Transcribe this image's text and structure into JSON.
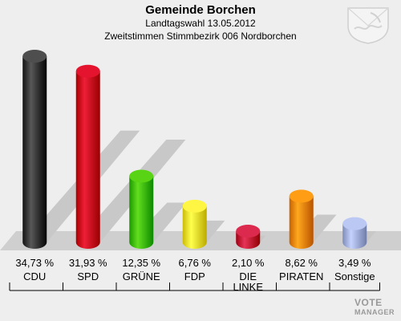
{
  "header": {
    "title": "Gemeinde Borchen",
    "subtitle": "Landtagswahl 13.05.2012",
    "subtitle2": "Zweitstimmen Stimmbezirk 006 Nordborchen"
  },
  "watermark": {
    "line1": "VOTE",
    "line2": "MANAGER"
  },
  "chart_data": {
    "type": "bar",
    "title": "Gemeinde Borchen",
    "categories": [
      "CDU",
      "SPD",
      "GRÜNE",
      "FDP",
      "DIE LINKE",
      "PIRATEN",
      "Sonstige"
    ],
    "values": [
      34.73,
      31.93,
      12.35,
      6.76,
      2.1,
      8.62,
      3.49
    ],
    "value_labels": [
      "34,73 %",
      "31,93 %",
      "12,35 %",
      "6,76 %",
      "2,10 %",
      "8,62 %",
      "3,49 %"
    ],
    "colors": [
      "#3a3a3a",
      "#d0001a",
      "#44c000",
      "#f2e230",
      "#c8163a",
      "#f08a00",
      "#a8b4e0"
    ],
    "unit": "%",
    "ylim": [
      0,
      34.73
    ]
  }
}
